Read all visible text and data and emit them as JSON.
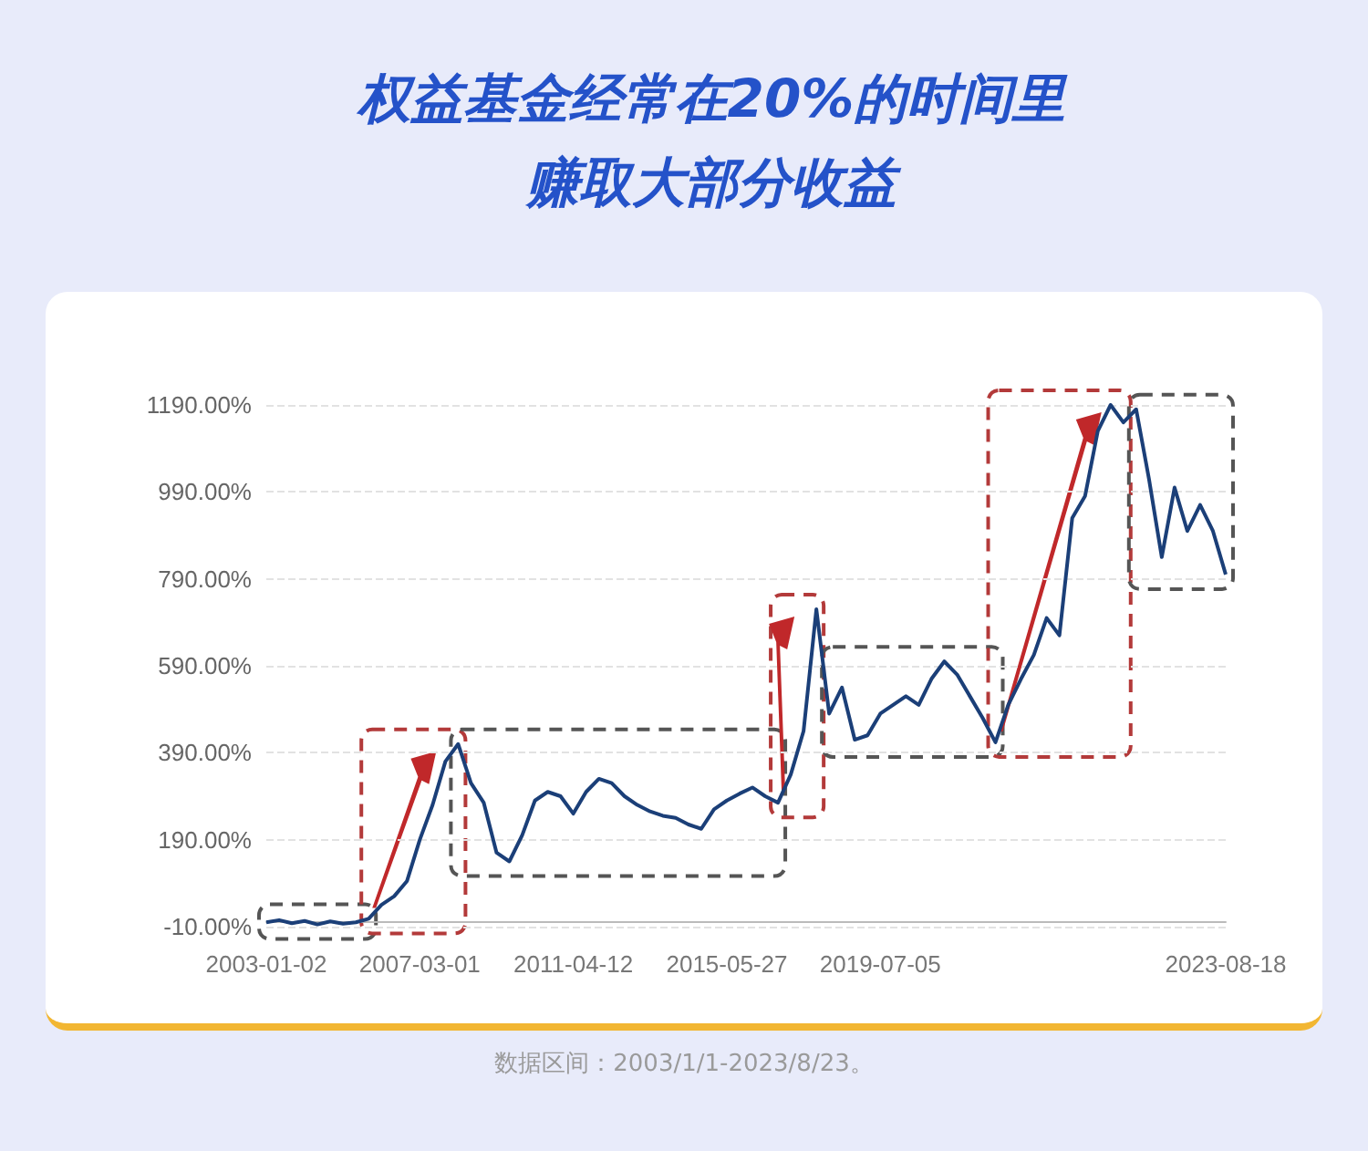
{
  "chart_data": {
    "type": "line",
    "title": "权益基金经常在20%的时间里赚取大部分收益",
    "categories": [
      "2003-01-02",
      null,
      null,
      null,
      null,
      null,
      null,
      null,
      null,
      null,
      null,
      null,
      "2007-03-01",
      null,
      null,
      null,
      null,
      null,
      null,
      null,
      null,
      null,
      null,
      null,
      "2011-04-12",
      null,
      null,
      null,
      null,
      null,
      null,
      null,
      null,
      null,
      null,
      null,
      "2015-05-27",
      null,
      null,
      null,
      null,
      null,
      null,
      null,
      null,
      null,
      null,
      null,
      "2019-07-05",
      null,
      null,
      null,
      null,
      null,
      null,
      null,
      null,
      null,
      null,
      null,
      null,
      null,
      null,
      null,
      null,
      null,
      null,
      null,
      null,
      null,
      null,
      null,
      null,
      null,
      null,
      "2023-08-18"
    ],
    "series": [
      {
        "color": "#1b3f78",
        "values": [
          0,
          5,
          -2,
          3,
          -5,
          2,
          -3,
          0,
          8,
          40,
          60,
          95,
          190,
          270,
          370,
          410,
          320,
          275,
          160,
          140,
          200,
          280,
          300,
          290,
          250,
          300,
          330,
          320,
          290,
          270,
          255,
          245,
          240,
          225,
          215,
          260,
          280,
          296,
          310,
          290,
          275,
          340,
          440,
          720,
          480,
          540,
          420,
          430,
          480,
          500,
          520,
          500,
          560,
          600,
          570,
          520,
          470,
          414,
          500,
          560,
          615,
          700,
          660,
          930,
          980,
          1130,
          1190,
          1150,
          1180,
          1020,
          840,
          1000,
          900,
          960,
          900,
          800
        ]
      }
    ],
    "ylim": [
      -10,
      1190
    ],
    "yticks": [
      {
        "value": -10,
        "label": "-10.00%"
      },
      {
        "value": 190,
        "label": "190.00%"
      },
      {
        "value": 390,
        "label": "390.00%"
      },
      {
        "value": 590,
        "label": "590.00%"
      },
      {
        "value": 790,
        "label": "790.00%"
      },
      {
        "value": 990,
        "label": "990.00%"
      },
      {
        "value": 1190,
        "label": "1190.00%"
      }
    ],
    "grid": "y",
    "marker": "none",
    "line_style": "solid",
    "annotations": [
      "数据区间：2003/1/1-2023/8/23。"
    ]
  }
}
